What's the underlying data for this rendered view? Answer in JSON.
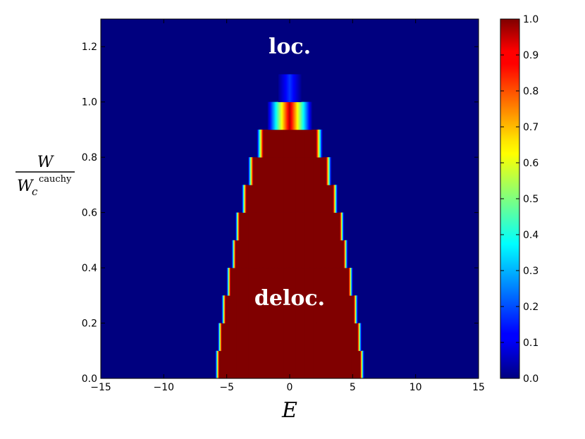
{
  "chart_data": {
    "type": "heatmap",
    "title": "",
    "xlabel": "E",
    "ylabel": {
      "numerator": "W",
      "denominator_base": "W",
      "denominator_sub": "c",
      "denominator_sup": "cauchy"
    },
    "xlim": [
      -15,
      15
    ],
    "ylim": [
      0,
      1.3
    ],
    "x_ticks": [
      -15,
      -10,
      -5,
      0,
      5,
      10,
      15
    ],
    "x_tick_labels": [
      "−15",
      "−10",
      "−5",
      "0",
      "5",
      "10",
      "15"
    ],
    "y_ticks": [
      0.0,
      0.2,
      0.4,
      0.6,
      0.8,
      1.0,
      1.2
    ],
    "y_tick_labels": [
      "0.0",
      "0.2",
      "0.4",
      "0.6",
      "0.8",
      "1.0",
      "1.2"
    ],
    "colorbar": {
      "colormap": "jet",
      "range": [
        0,
        1
      ],
      "ticks": [
        0.0,
        0.1,
        0.2,
        0.3,
        0.4,
        0.5,
        0.6,
        0.7,
        0.8,
        0.9,
        1.0
      ],
      "tick_labels": [
        "0.0",
        "0.1",
        "0.2",
        "0.3",
        "0.4",
        "0.5",
        "0.6",
        "0.7",
        "0.8",
        "0.9",
        "1.0"
      ]
    },
    "background_value": 0.0,
    "rows": [
      {
        "w_min": 0.0,
        "w_max": 0.1,
        "e_edge": 5.9,
        "edge_width": 0.3
      },
      {
        "w_min": 0.1,
        "w_max": 0.2,
        "e_edge": 5.7,
        "edge_width": 0.3
      },
      {
        "w_min": 0.2,
        "w_max": 0.3,
        "e_edge": 5.4,
        "edge_width": 0.3
      },
      {
        "w_min": 0.3,
        "w_max": 0.4,
        "e_edge": 5.0,
        "edge_width": 0.3
      },
      {
        "w_min": 0.4,
        "w_max": 0.5,
        "e_edge": 4.6,
        "edge_width": 0.3
      },
      {
        "w_min": 0.5,
        "w_max": 0.6,
        "e_edge": 4.3,
        "edge_width": 0.3
      },
      {
        "w_min": 0.6,
        "w_max": 0.7,
        "e_edge": 3.8,
        "edge_width": 0.35
      },
      {
        "w_min": 0.7,
        "w_max": 0.8,
        "e_edge": 3.3,
        "edge_width": 0.4
      },
      {
        "w_min": 0.8,
        "w_max": 0.9,
        "e_edge": 2.6,
        "edge_width": 0.5
      },
      {
        "w_min": 0.9,
        "w_max": 1.0,
        "e_edge": 1.8,
        "edge_width": 1.8,
        "peak_value": 0.95
      },
      {
        "w_min": 1.0,
        "w_max": 1.1,
        "e_edge": 1.0,
        "edge_width": 1.0,
        "peak_value": 0.18
      }
    ],
    "annotations": [
      {
        "text": "loc.",
        "x": 0,
        "y": 1.2
      },
      {
        "text": "deloc.",
        "x": 0,
        "y": 0.29
      }
    ]
  }
}
